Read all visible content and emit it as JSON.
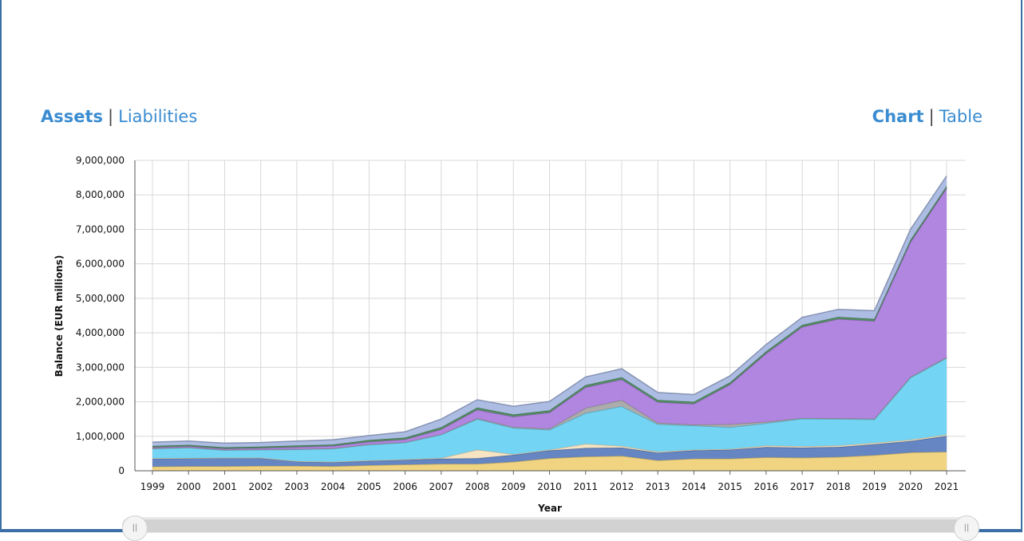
{
  "nav": {
    "assets_label": "Assets",
    "liabilities_label": "Liabilities",
    "separator": "|",
    "chart_label": "Chart",
    "table_label": "Table"
  },
  "scrollbar": {
    "handle_glyph": "||"
  },
  "chart_data": {
    "type": "area",
    "stacked": true,
    "xlabel": "Year",
    "ylabel": "Balance (EUR millions)",
    "ylim": [
      0,
      9000000
    ],
    "yticks": [
      0,
      1000000,
      2000000,
      3000000,
      4000000,
      5000000,
      6000000,
      7000000,
      8000000,
      9000000
    ],
    "grid": true,
    "categories": [
      "1999",
      "2000",
      "2001",
      "2002",
      "2003",
      "2004",
      "2005",
      "2006",
      "2007",
      "2008",
      "2009",
      "2010",
      "2011",
      "2012",
      "2013",
      "2014",
      "2015",
      "2016",
      "2017",
      "2018",
      "2019",
      "2020",
      "2021"
    ],
    "series": [
      {
        "color": "#f0d27a",
        "values": [
          120000,
          130000,
          130000,
          140000,
          140000,
          130000,
          160000,
          180000,
          200000,
          200000,
          260000,
          360000,
          410000,
          430000,
          300000,
          350000,
          350000,
          390000,
          380000,
          400000,
          450000,
          530000,
          550000
        ]
      },
      {
        "color": "#5d7fc0",
        "values": [
          230000,
          230000,
          240000,
          230000,
          130000,
          120000,
          130000,
          140000,
          150000,
          160000,
          200000,
          230000,
          250000,
          240000,
          220000,
          240000,
          260000,
          300000,
          290000,
          290000,
          320000,
          330000,
          460000
        ]
      },
      {
        "color": "#f5e3c0",
        "values": [
          10000,
          10000,
          10000,
          10000,
          10000,
          10000,
          10000,
          10000,
          20000,
          250000,
          20000,
          20000,
          120000,
          50000,
          30000,
          20000,
          20000,
          40000,
          40000,
          40000,
          40000,
          40000,
          40000
        ]
      },
      {
        "color": "#6dd2f2",
        "values": [
          280000,
          300000,
          220000,
          230000,
          340000,
          380000,
          460000,
          490000,
          680000,
          890000,
          760000,
          580000,
          890000,
          1150000,
          800000,
          700000,
          630000,
          650000,
          800000,
          770000,
          680000,
          1800000,
          2220000
        ]
      },
      {
        "color": "#a8a8a8",
        "values": [
          10000,
          10000,
          10000,
          10000,
          10000,
          10000,
          10000,
          10000,
          10000,
          20000,
          30000,
          30000,
          150000,
          180000,
          40000,
          30000,
          90000,
          40000,
          20000,
          20000,
          20000,
          20000,
          20000
        ]
      },
      {
        "color": "#ad7fde",
        "values": [
          30000,
          30000,
          30000,
          40000,
          60000,
          70000,
          70000,
          80000,
          140000,
          250000,
          300000,
          470000,
          600000,
          600000,
          600000,
          600000,
          1150000,
          1980000,
          2640000,
          2880000,
          2830000,
          3910000,
          4900000
        ]
      },
      {
        "color": "#4c8b5a",
        "values": [
          40000,
          40000,
          40000,
          40000,
          40000,
          40000,
          50000,
          50000,
          60000,
          60000,
          60000,
          60000,
          60000,
          60000,
          60000,
          60000,
          60000,
          60000,
          60000,
          60000,
          60000,
          60000,
          60000
        ]
      },
      {
        "color": "#a8b8e0",
        "values": [
          110000,
          110000,
          120000,
          120000,
          130000,
          140000,
          130000,
          170000,
          240000,
          230000,
          240000,
          260000,
          240000,
          250000,
          220000,
          210000,
          190000,
          200000,
          220000,
          220000,
          240000,
          310000,
          300000
        ]
      }
    ]
  }
}
